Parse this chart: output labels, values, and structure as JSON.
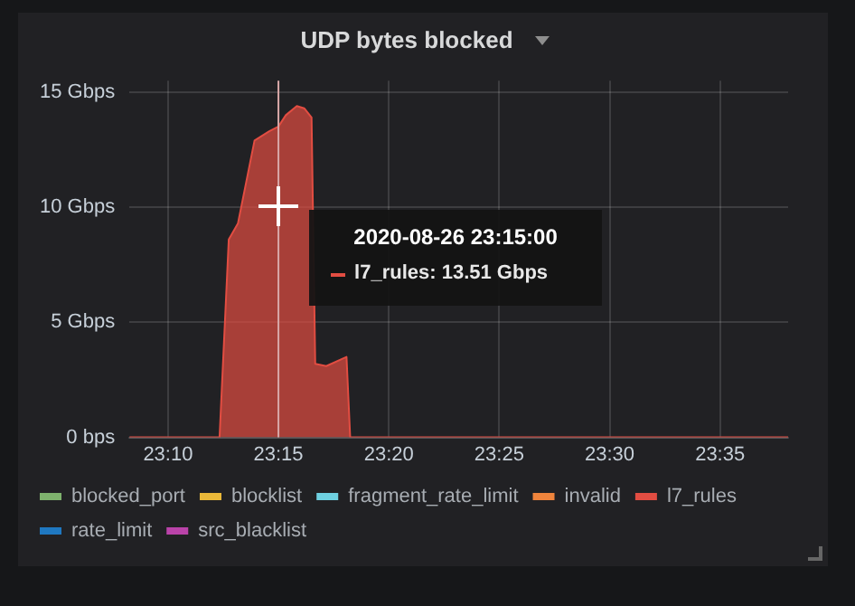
{
  "chart_data": {
    "type": "area",
    "title": "UDP bytes blocked",
    "xlim": [
      "2020-08-26T23:08:15",
      "2020-08-26T23:38:05"
    ],
    "xticks": [
      {
        "value": "2020-08-26T23:10",
        "label": "23:10"
      },
      {
        "value": "2020-08-26T23:15",
        "label": "23:15"
      },
      {
        "value": "2020-08-26T23:20",
        "label": "23:20"
      },
      {
        "value": "2020-08-26T23:25",
        "label": "23:25"
      },
      {
        "value": "2020-08-26T23:30",
        "label": "23:30"
      },
      {
        "value": "2020-08-26T23:35",
        "label": "23:35"
      }
    ],
    "ylim": [
      0,
      15.5
    ],
    "yticks": [
      {
        "value": 0,
        "label": "0 bps"
      },
      {
        "value": 5,
        "label": "5 Gbps"
      },
      {
        "value": 10,
        "label": "10 Gbps"
      },
      {
        "value": 15,
        "label": "15 Gbps"
      }
    ],
    "grid": true,
    "legend": "bottom",
    "series": [
      {
        "name": "blocked_port",
        "color": "#7eb26d"
      },
      {
        "name": "blocklist",
        "color": "#eab839"
      },
      {
        "name": "fragment_rate_limit",
        "color": "#6ed0e0"
      },
      {
        "name": "invalid",
        "color": "#ef843c"
      },
      {
        "name": "l7_rules",
        "color": "#e24d42",
        "x": [
          "2020-08-26T23:08:15",
          "2020-08-26T23:12:20",
          "2020-08-26T23:12:45",
          "2020-08-26T23:13:10",
          "2020-08-26T23:13:55",
          "2020-08-26T23:14:35",
          "2020-08-26T23:15:00",
          "2020-08-26T23:15:20",
          "2020-08-26T23:15:50",
          "2020-08-26T23:16:10",
          "2020-08-26T23:16:30",
          "2020-08-26T23:16:40",
          "2020-08-26T23:17:10",
          "2020-08-26T23:18:05",
          "2020-08-26T23:18:15",
          "2020-08-26T23:38:05"
        ],
        "values": [
          0,
          0,
          8.6,
          9.3,
          12.9,
          13.3,
          13.51,
          14.0,
          14.4,
          14.3,
          13.9,
          3.2,
          3.1,
          3.5,
          0,
          0
        ]
      },
      {
        "name": "rate_limit",
        "color": "#1f78c1"
      },
      {
        "name": "src_blacklist",
        "color": "#ba43a9"
      }
    ],
    "ref_lines": [
      {
        "axis": "x",
        "value": "2020-08-26T23:15",
        "label": null,
        "color": "#d8a8a8"
      }
    ],
    "annotations": [
      "2020-08-26 23:15:00",
      "l7_rules:  13.51 Gbps"
    ]
  }
}
